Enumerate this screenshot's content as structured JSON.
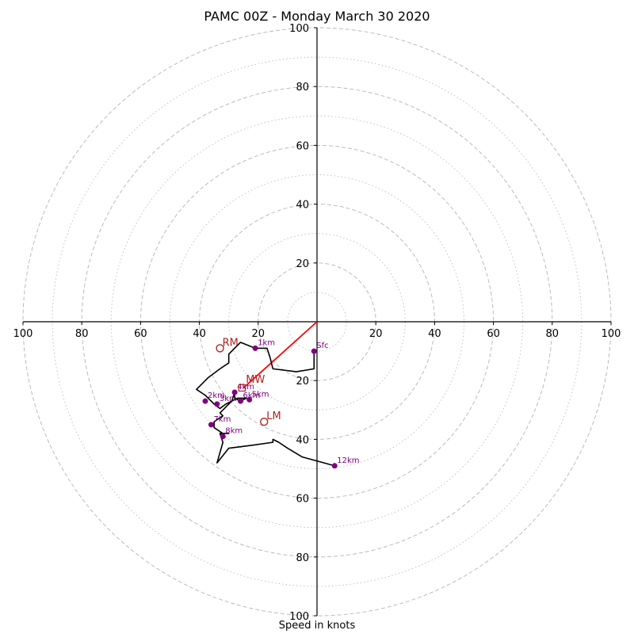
{
  "chart_data": {
    "type": "scatter",
    "title": "PAMC 00Z - Monday March 30 2020",
    "xlabel": "Speed in knots",
    "ylabel": "",
    "xlim": [
      -100,
      100
    ],
    "ylim": [
      -100,
      100
    ],
    "ring_ticks": [
      "20",
      "40",
      "60",
      "80",
      "100"
    ],
    "grid": "concentric dashed rings every 20 kt, dotted rings in between",
    "colors": {
      "hodograph": "#000000",
      "height_markers": "#800080",
      "storm_motion": "#b22222",
      "shear_vector": "#ff0000",
      "grid": "#bbbbbb"
    },
    "hodograph_trace": [
      [
        -1,
        -10
      ],
      [
        -1,
        -16
      ],
      [
        -7,
        -17
      ],
      [
        -15,
        -16
      ],
      [
        -16,
        -12
      ],
      [
        -17,
        -9
      ],
      [
        -21,
        -9
      ],
      [
        -26,
        -7
      ],
      [
        -30,
        -11
      ],
      [
        -30,
        -14
      ],
      [
        -33,
        -16
      ],
      [
        -37,
        -19
      ],
      [
        -41,
        -23
      ],
      [
        -38,
        -25
      ],
      [
        -35,
        -28
      ],
      [
        -33,
        -29.5
      ],
      [
        -31,
        -28
      ],
      [
        -29,
        -27
      ],
      [
        -27,
        -26
      ],
      [
        -26,
        -26
      ],
      [
        -24,
        -26
      ],
      [
        -26,
        -27
      ],
      [
        -28,
        -26
      ],
      [
        -28,
        -25
      ],
      [
        -28,
        -24
      ],
      [
        -29,
        -27
      ],
      [
        -31,
        -29
      ],
      [
        -33,
        -31
      ],
      [
        -32,
        -32
      ],
      [
        -35,
        -34
      ],
      [
        -35,
        -36
      ],
      [
        -32,
        -38
      ],
      [
        -30,
        -38
      ],
      [
        -33,
        -38
      ],
      [
        -32,
        -41
      ],
      [
        -34,
        -48
      ],
      [
        -30,
        -43
      ],
      [
        -22,
        -42
      ],
      [
        -15,
        -41
      ],
      [
        -15,
        -40
      ],
      [
        -13,
        -41
      ],
      [
        -10,
        -43
      ],
      [
        -5,
        -46
      ],
      [
        6,
        -49
      ]
    ],
    "height_markers": [
      {
        "label": "Sfc",
        "u": -1,
        "v": -10
      },
      {
        "label": "1km",
        "u": -21,
        "v": -9
      },
      {
        "label": "2km",
        "u": -38,
        "v": -27
      },
      {
        "label": "3km",
        "u": -34,
        "v": -28
      },
      {
        "label": "4km",
        "u": -28,
        "v": -24
      },
      {
        "label": "5km",
        "u": -23,
        "v": -26.5
      },
      {
        "label": "6km",
        "u": -26,
        "v": -27
      },
      {
        "label": "7km",
        "u": -36,
        "v": -35
      },
      {
        "label": "8km",
        "u": -32,
        "v": -39
      },
      {
        "label": "12km",
        "u": 6,
        "v": -49
      }
    ],
    "storm_motions": [
      {
        "label": "RM",
        "u": -33,
        "v": -9
      },
      {
        "label": "LM",
        "u": -18,
        "v": -34
      },
      {
        "label": "MW",
        "u": -25,
        "v": -21.5
      },
      {
        "label": "DM",
        "u": -25.5,
        "v": -22.5
      }
    ],
    "shear_vector": {
      "from": [
        0,
        0
      ],
      "to": [
        -25,
        -22.5
      ]
    }
  }
}
